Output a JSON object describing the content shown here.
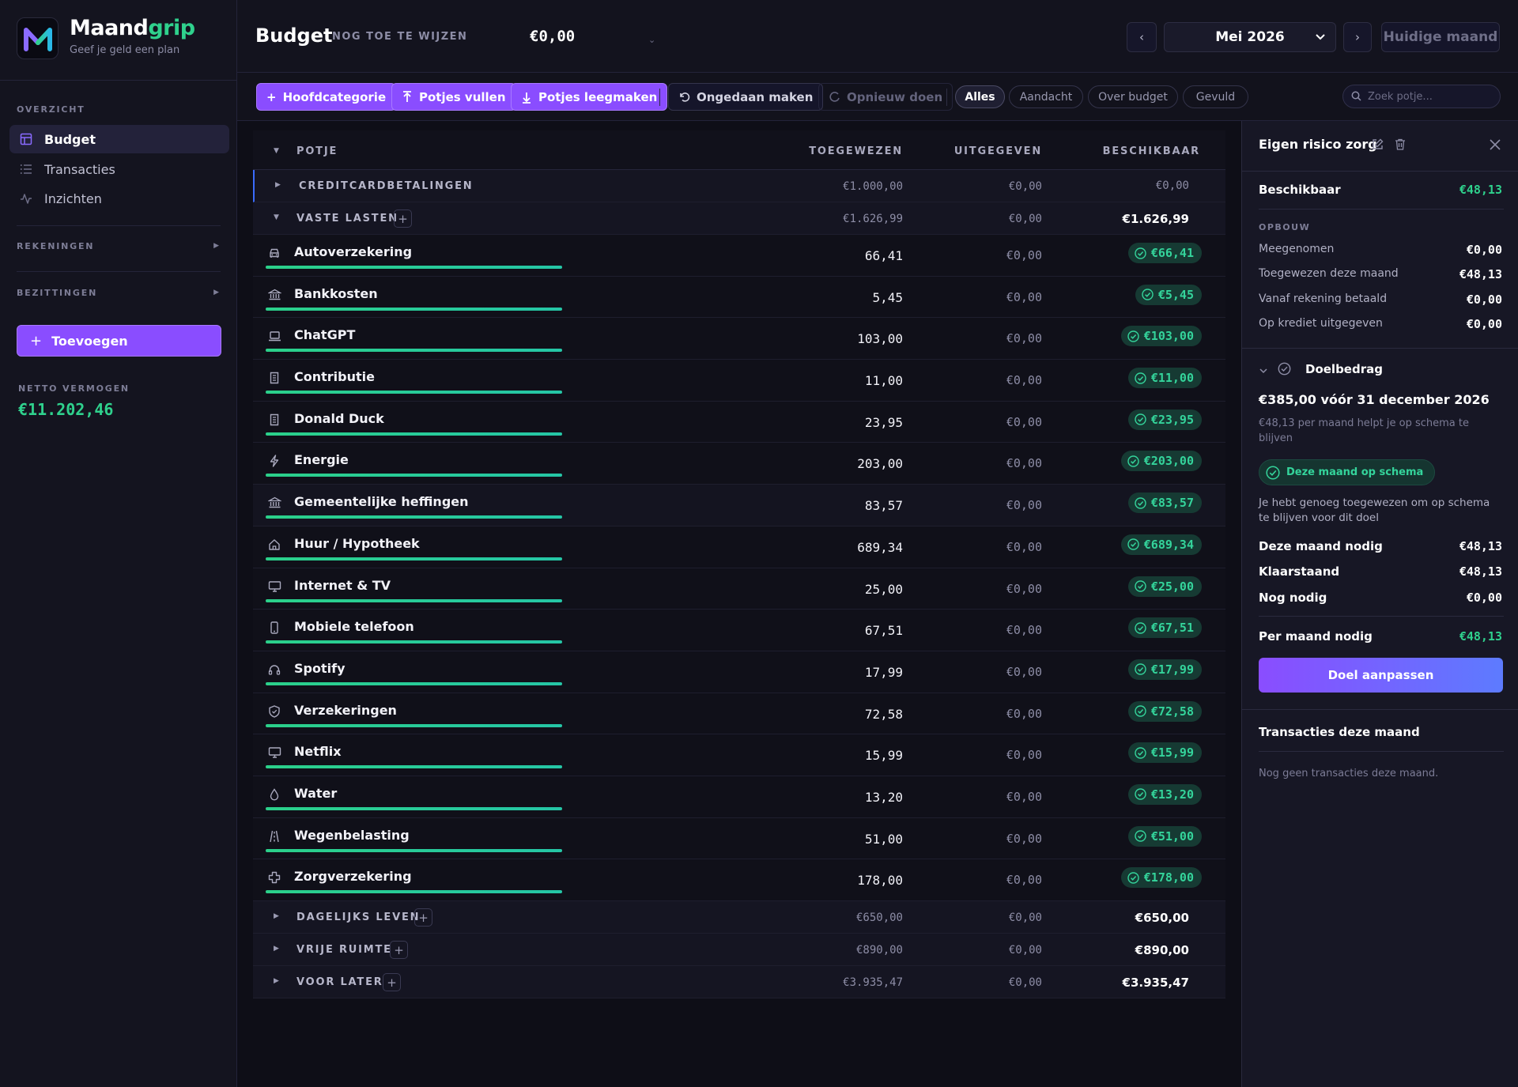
{
  "brand": {
    "name_part1": "Maand",
    "name_part2": "grip",
    "tagline": "Geef je geld een plan"
  },
  "sidebar": {
    "overview_label": "OVERZICHT",
    "nav": [
      {
        "label": "Budget",
        "icon": "grid-icon",
        "active": true
      },
      {
        "label": "Transacties",
        "icon": "list-icon",
        "active": false
      },
      {
        "label": "Inzichten",
        "icon": "activity-icon",
        "active": false
      }
    ],
    "rekeningen_label": "REKENINGEN",
    "bezittingen_label": "BEZITTINGEN",
    "add_label": "Toevoegen",
    "netto_label": "NETTO VERMOGEN",
    "netto_value": "€11.202,46"
  },
  "header": {
    "title": "Budget",
    "tba_label": "NOG TOE TE WIJZEN",
    "tba_value": "€0,00",
    "month": "Mei 2026",
    "huidige_label": "Huidige maand",
    "prev": "‹",
    "next": "›"
  },
  "toolbar": {
    "hoofdcategorie": "Hoofdcategorie",
    "vullen": "Potjes vullen",
    "leegmaken": "Potjes leegmaken",
    "undo": "Ongedaan maken",
    "redo": "Opnieuw doen",
    "filters": [
      "Alles",
      "Aandacht",
      "Over budget",
      "Gevuld"
    ],
    "active_filter": "Alles",
    "search_placeholder": "Zoek potje..."
  },
  "table": {
    "headers": {
      "potje": "POTJE",
      "toegewezen": "TOEGEWEZEN",
      "uitgegeven": "UITGEGEVEN",
      "beschikbaar": "BESCHIKBAAR"
    },
    "groups_top": [
      {
        "name": "CREDITCARDBETALINGEN",
        "toegewezen": "€1.000,00",
        "uitgegeven": "€0,00",
        "beschikbaar": "€0,00"
      },
      {
        "name": "VASTE LASTEN",
        "toegewezen": "€1.626,99",
        "uitgegeven": "€0,00",
        "beschikbaar": "€1.626,99"
      }
    ],
    "items": [
      {
        "name": "Autoverzekering",
        "icon": "car-icon",
        "toegewezen": "66,41",
        "uitgegeven": "€0,00",
        "beschikbaar": "€66,41",
        "progress": 1.0
      },
      {
        "name": "Bankkosten",
        "icon": "bank-icon",
        "toegewezen": "5,45",
        "uitgegeven": "€0,00",
        "beschikbaar": "€5,45",
        "progress": 1.0
      },
      {
        "name": "ChatGPT",
        "icon": "laptop-icon",
        "toegewezen": "103,00",
        "uitgegeven": "€0,00",
        "beschikbaar": "€103,00",
        "progress": 1.0
      },
      {
        "name": "Contributie",
        "icon": "receipt-icon",
        "toegewezen": "11,00",
        "uitgegeven": "€0,00",
        "beschikbaar": "€11,00",
        "progress": 1.0
      },
      {
        "name": "Donald Duck",
        "icon": "receipt-icon",
        "toegewezen": "23,95",
        "uitgegeven": "€0,00",
        "beschikbaar": "€23,95",
        "progress": 1.0
      },
      {
        "name": "Energie",
        "icon": "bolt-icon",
        "toegewezen": "203,00",
        "uitgegeven": "€0,00",
        "beschikbaar": "€203,00",
        "progress": 1.0
      },
      {
        "name": "Gemeentelijke heffingen",
        "icon": "bank-icon",
        "toegewezen": "83,57",
        "uitgegeven": "€0,00",
        "beschikbaar": "€83,57",
        "progress": 1.0
      },
      {
        "name": "Huur / Hypotheek",
        "icon": "home-icon",
        "toegewezen": "689,34",
        "uitgegeven": "€0,00",
        "beschikbaar": "€689,34",
        "progress": 1.0
      },
      {
        "name": "Internet & TV",
        "icon": "monitor-icon",
        "toegewezen": "25,00",
        "uitgegeven": "€0,00",
        "beschikbaar": "€25,00",
        "progress": 1.0
      },
      {
        "name": "Mobiele telefoon",
        "icon": "phone-icon",
        "toegewezen": "67,51",
        "uitgegeven": "€0,00",
        "beschikbaar": "€67,51",
        "progress": 1.0
      },
      {
        "name": "Spotify",
        "icon": "headphones-icon",
        "toegewezen": "17,99",
        "uitgegeven": "€0,00",
        "beschikbaar": "€17,99",
        "progress": 1.0
      },
      {
        "name": "Verzekeringen",
        "icon": "shield-icon",
        "toegewezen": "72,58",
        "uitgegeven": "€0,00",
        "beschikbaar": "€72,58",
        "progress": 1.0
      },
      {
        "name": "Netflix",
        "icon": "monitor-icon",
        "toegewezen": "15,99",
        "uitgegeven": "€0,00",
        "beschikbaar": "€15,99",
        "progress": 1.0
      },
      {
        "name": "Water",
        "icon": "droplet-icon",
        "toegewezen": "13,20",
        "uitgegeven": "€0,00",
        "beschikbaar": "€13,20",
        "progress": 1.0
      },
      {
        "name": "Wegenbelasting",
        "icon": "road-icon",
        "toegewezen": "51,00",
        "uitgegeven": "€0,00",
        "beschikbaar": "€51,00",
        "progress": 1.0
      },
      {
        "name": "Zorgverzekering",
        "icon": "health-icon",
        "toegewezen": "178,00",
        "uitgegeven": "€0,00",
        "beschikbaar": "€178,00",
        "progress": 1.0
      }
    ],
    "groups_bottom": [
      {
        "name": "DAGELIJKS LEVEN",
        "toegewezen": "€650,00",
        "uitgegeven": "€0,00",
        "beschikbaar": "€650,00"
      },
      {
        "name": "VRIJE RUIMTE",
        "toegewezen": "€890,00",
        "uitgegeven": "€0,00",
        "beschikbaar": "€890,00"
      },
      {
        "name": "VOOR LATER",
        "toegewezen": "€3.935,47",
        "uitgegeven": "€0,00",
        "beschikbaar": "€3.935,47"
      }
    ]
  },
  "detail": {
    "title": "Eigen risico zorg",
    "beschikbaar_label": "Beschikbaar",
    "beschikbaar_value": "€48,13",
    "opbouw_label": "OPBOUW",
    "opbouw": [
      {
        "label": "Meegenomen",
        "value": "€0,00"
      },
      {
        "label": "Toegewezen deze maand",
        "value": "€48,13"
      },
      {
        "label": "Vanaf rekening betaald",
        "value": "€0,00"
      },
      {
        "label": "Op krediet uitgegeven",
        "value": "€0,00"
      }
    ],
    "doel_label": "Doelbedrag",
    "doel_summary": "€385,00 vóór 31 december 2026",
    "doel_hint": "€48,13 per maand helpt je op schema te blijven",
    "schema_label": "Deze maand op schema",
    "schema_text": "Je hebt genoeg toegewezen om op schema te blijven voor dit doel",
    "nodig_rows": [
      {
        "label": "Deze maand nodig",
        "value": "€48,13"
      },
      {
        "label": "Klaarstaand",
        "value": "€48,13"
      },
      {
        "label": "Nog nodig",
        "value": "€0,00"
      }
    ],
    "per_maand_label": "Per maand nodig",
    "per_maand_value": "€48,13",
    "doel_button": "Doel aanpassen",
    "transacties_title": "Transacties deze maand",
    "transacties_empty": "Nog geen transacties deze maand."
  },
  "colors": {
    "accent_purple": "#8a4dff",
    "positive_green": "#2fd18d",
    "background": "#0f0f19"
  }
}
